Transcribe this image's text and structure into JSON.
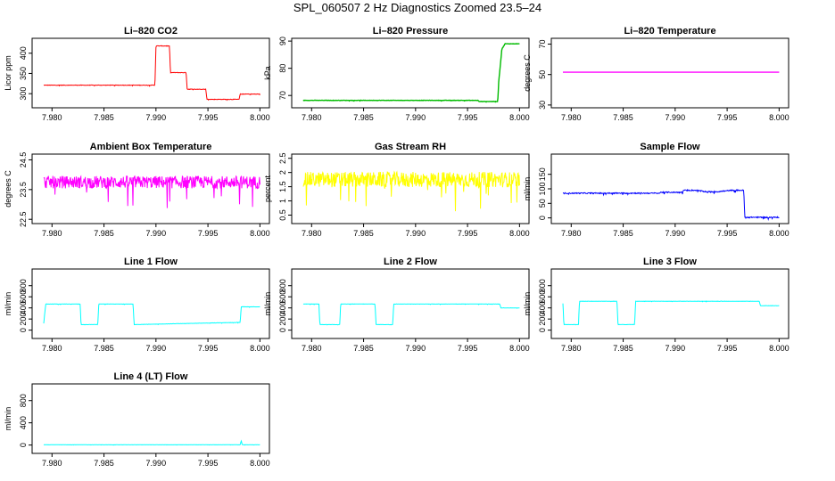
{
  "title": "SPL_060507  2 Hz Diagnostics Zoomed 23.5–24",
  "chart_data": [
    {
      "type": "line",
      "title": "Li–820 CO2",
      "ylabel": "Licor ppm",
      "color": "#ff0000",
      "xlim": [
        7.979,
        8.0
      ],
      "ylim": [
        272,
        430
      ],
      "xticks": [
        7.98,
        7.985,
        7.99,
        7.995,
        8.0
      ],
      "xticklabels": [
        "7.980",
        "7.985",
        "7.990",
        "7.995",
        "8.000"
      ],
      "yticks": [
        300,
        350,
        400
      ],
      "yticklabels": [
        "300",
        "350",
        "400"
      ],
      "noise": 1,
      "x": [
        7.9792,
        7.9899,
        7.99,
        7.9913,
        7.9914,
        7.9929,
        7.993,
        7.9948,
        7.9949,
        7.998,
        7.9981,
        8.0
      ],
      "y": [
        321,
        321,
        418,
        418,
        352,
        352,
        311,
        311,
        286,
        286,
        299,
        299
      ]
    },
    {
      "type": "line",
      "title": "Li–820 Pressure",
      "ylabel": "kPa",
      "color": "#00bb00",
      "xlim": [
        7.979,
        8.0
      ],
      "ylim": [
        66.5,
        90
      ],
      "xticks": [
        7.98,
        7.985,
        7.99,
        7.995,
        8.0
      ],
      "xticklabels": [
        "7.980",
        "7.985",
        "7.990",
        "7.995",
        "8.000"
      ],
      "yticks": [
        70,
        80,
        90
      ],
      "yticklabels": [
        "70",
        "80",
        "90"
      ],
      "noise": 0.1,
      "x": [
        7.9792,
        7.996,
        7.9961,
        7.9979,
        7.998,
        7.9983,
        7.9986,
        8.0
      ],
      "y": [
        68.2,
        68.2,
        67.8,
        67.8,
        75,
        87,
        89,
        89
      ]
    },
    {
      "type": "line",
      "title": "Li–820 Temperature",
      "ylabel": "degrees C",
      "color": "#ff00ff",
      "xlim": [
        7.979,
        8.0
      ],
      "ylim": [
        30,
        72
      ],
      "xticks": [
        7.98,
        7.985,
        7.99,
        7.995,
        8.0
      ],
      "xticklabels": [
        "7.980",
        "7.985",
        "7.990",
        "7.995",
        "8.000"
      ],
      "yticks": [
        30,
        50,
        70
      ],
      "yticklabels": [
        "30",
        "50",
        "70"
      ],
      "noise": 0,
      "x": [
        7.9792,
        8.0
      ],
      "y": [
        51.5,
        51.5
      ]
    },
    {
      "type": "line",
      "title": "Ambient Box Temperature",
      "ylabel": "degrees C",
      "color": "#ff00ff",
      "xlim": [
        7.979,
        8.0
      ],
      "ylim": [
        22.45,
        24.6
      ],
      "xticks": [
        7.98,
        7.985,
        7.99,
        7.995,
        8.0
      ],
      "xticklabels": [
        "7.980",
        "7.985",
        "7.990",
        "7.995",
        "8.000"
      ],
      "yticks": [
        22.5,
        23.5,
        24.5
      ],
      "yticklabels": [
        "22.5",
        "23.5",
        "24.5"
      ],
      "noise": 0.35,
      "x": [
        7.9792,
        8.0
      ],
      "y": [
        23.75,
        23.75
      ]
    },
    {
      "type": "line",
      "title": "Gas Stream RH",
      "ylabel": "percent",
      "color": "#ffff00",
      "xlim": [
        7.979,
        8.0
      ],
      "ylim": [
        0.3,
        2.55
      ],
      "xticks": [
        7.98,
        7.985,
        7.99,
        7.995,
        8.0
      ],
      "xticklabels": [
        "7.980",
        "7.985",
        "7.990",
        "7.995",
        "8.000"
      ],
      "yticks": [
        0.5,
        1.0,
        1.5,
        2.0,
        2.5
      ],
      "yticklabels": [
        "0.5",
        "1",
        "1.5",
        "2",
        "2.5"
      ],
      "noise": 0.45,
      "x": [
        7.9792,
        8.0
      ],
      "y": [
        1.75,
        1.75
      ]
    },
    {
      "type": "line",
      "title": "Sample Flow",
      "ylabel": "ml/min",
      "color": "#0000ff",
      "xlim": [
        7.979,
        8.0
      ],
      "ylim": [
        -10,
        210
      ],
      "xticks": [
        7.98,
        7.985,
        7.99,
        7.995,
        8.0
      ],
      "xticklabels": [
        "7.980",
        "7.985",
        "7.990",
        "7.995",
        "8.000"
      ],
      "yticks": [
        0,
        50,
        100,
        150
      ],
      "yticklabels": [
        "0",
        "50",
        "100",
        "150"
      ],
      "noise": 3,
      "x": [
        7.9792,
        7.9885,
        7.9886,
        7.9907,
        7.9908,
        7.992,
        7.993,
        7.994,
        7.9955,
        7.9966,
        7.9967,
        8.0
      ],
      "y": [
        85,
        85,
        88,
        88,
        95,
        95,
        90,
        90,
        95,
        95,
        2,
        2
      ]
    },
    {
      "type": "line",
      "title": "Line 1 Flow",
      "ylabel": "ml/min",
      "color": "#00ffff",
      "xlim": [
        7.979,
        8.0
      ],
      "ylim": [
        -100,
        1050
      ],
      "xticks": [
        7.98,
        7.985,
        7.99,
        7.995,
        8.0
      ],
      "xticklabels": [
        "7.980",
        "7.985",
        "7.990",
        "7.995",
        "8.000"
      ],
      "yticks": [
        0,
        200,
        400,
        600,
        800
      ],
      "yticklabels": [
        "0",
        "200",
        "400",
        "600",
        "800"
      ],
      "noise": 4,
      "x": [
        7.9792,
        7.9794,
        7.9827,
        7.9828,
        7.9844,
        7.9845,
        7.9878,
        7.9879,
        7.9981,
        7.9982,
        8.0
      ],
      "y": [
        120,
        470,
        470,
        100,
        100,
        470,
        470,
        100,
        140,
        420,
        420
      ]
    },
    {
      "type": "line",
      "title": "Line 2 Flow",
      "ylabel": "ml/min",
      "color": "#00ffff",
      "xlim": [
        7.979,
        8.0
      ],
      "ylim": [
        -100,
        1050
      ],
      "xticks": [
        7.98,
        7.985,
        7.99,
        7.995,
        8.0
      ],
      "xticklabels": [
        "7.980",
        "7.985",
        "7.990",
        "7.995",
        "8.000"
      ],
      "yticks": [
        0,
        200,
        400,
        600,
        800
      ],
      "yticklabels": [
        "0",
        "200",
        "400",
        "600",
        "800"
      ],
      "noise": 4,
      "x": [
        7.9792,
        7.9807,
        7.9808,
        7.9827,
        7.9828,
        7.9861,
        7.9862,
        7.9878,
        7.9879,
        7.9981,
        7.9982,
        8.0
      ],
      "y": [
        470,
        470,
        100,
        100,
        470,
        470,
        100,
        100,
        470,
        470,
        400,
        400
      ]
    },
    {
      "type": "line",
      "title": "Line 3 Flow",
      "ylabel": "ml/min",
      "color": "#00ffff",
      "xlim": [
        7.979,
        8.0
      ],
      "ylim": [
        -100,
        1050
      ],
      "xticks": [
        7.98,
        7.985,
        7.99,
        7.995,
        8.0
      ],
      "xticklabels": [
        "7.980",
        "7.985",
        "7.990",
        "7.995",
        "8.000"
      ],
      "yticks": [
        0,
        200,
        400,
        600,
        800
      ],
      "yticklabels": [
        "0",
        "200",
        "400",
        "600",
        "800"
      ],
      "noise": 4,
      "x": [
        7.9792,
        7.9793,
        7.9807,
        7.9808,
        7.9844,
        7.9845,
        7.9861,
        7.9862,
        7.9981,
        7.9982,
        8.0
      ],
      "y": [
        480,
        100,
        100,
        520,
        520,
        100,
        100,
        520,
        520,
        440,
        440
      ]
    },
    {
      "type": "line",
      "title": "Line 4 (LT) Flow",
      "ylabel": "ml/min",
      "color": "#00ffff",
      "xlim": [
        7.979,
        8.0
      ],
      "ylim": [
        -100,
        1050
      ],
      "xticks": [
        7.98,
        7.985,
        7.99,
        7.995,
        8.0
      ],
      "xticklabels": [
        "7.980",
        "7.985",
        "7.990",
        "7.995",
        "8.000"
      ],
      "yticks": [
        0,
        400,
        800
      ],
      "yticklabels": [
        "0",
        "400",
        "800"
      ],
      "noise": 2,
      "x": [
        7.9792,
        7.9981,
        7.9982,
        7.9983,
        7.9984,
        8.0
      ],
      "y": [
        5,
        5,
        80,
        5,
        5,
        5
      ]
    }
  ]
}
